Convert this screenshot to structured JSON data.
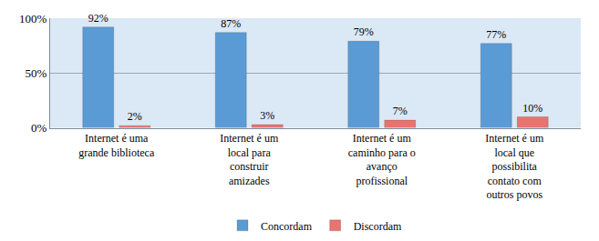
{
  "chart_data": {
    "type": "bar",
    "categories": [
      "Internet é uma grande biblioteca",
      "Internet é um local para construir amizades",
      "Internet é um caminho para o avanço profissional",
      "Internet é um local que possibilita contato com outros povos"
    ],
    "series": [
      {
        "name": "Concordam",
        "color": "#5b9bd5",
        "values": [
          92,
          87,
          79,
          77
        ],
        "value_labels": [
          "92%",
          "87%",
          "79%",
          "77%"
        ]
      },
      {
        "name": "Discordam",
        "color": "#e9736f",
        "values": [
          2,
          3,
          7,
          10
        ],
        "value_labels": [
          "2%",
          "3%",
          "7%",
          "10%"
        ]
      }
    ],
    "ylim": [
      0,
      100
    ],
    "yticks": [
      {
        "value": 0,
        "label": "0%"
      },
      {
        "value": 50,
        "label": "50%"
      },
      {
        "value": 100,
        "label": "100%"
      }
    ],
    "grid": true,
    "legend": "bottom",
    "data_labels": true
  }
}
